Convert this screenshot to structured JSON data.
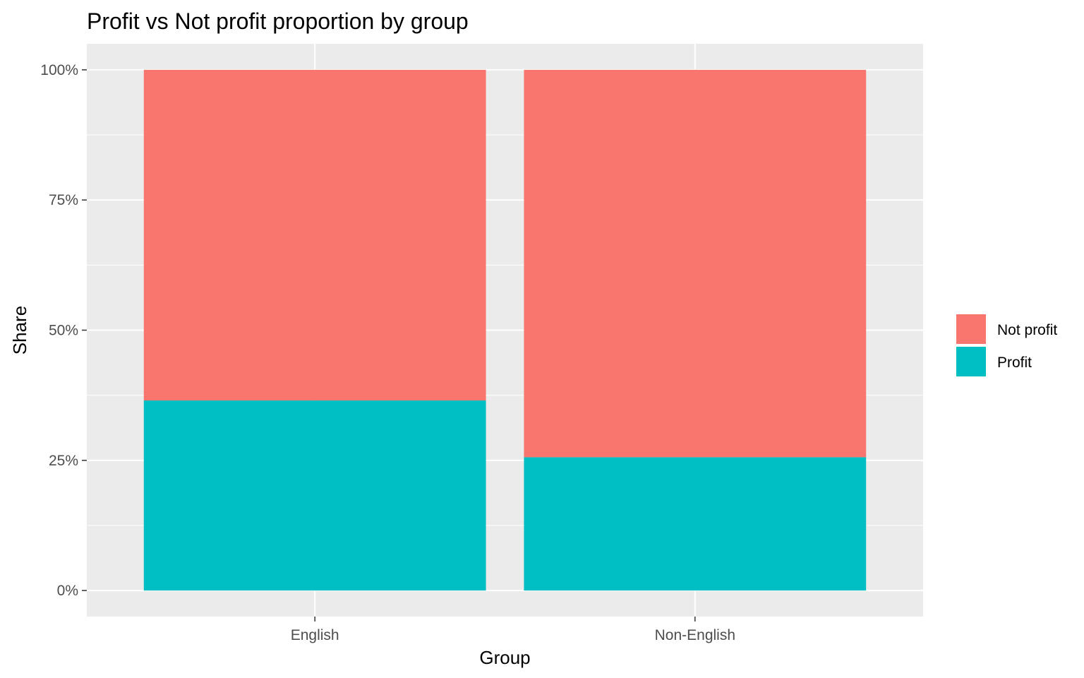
{
  "chart_data": {
    "type": "bar",
    "stacked": true,
    "title": "Profit vs Not profit proportion by group",
    "xlabel": "Group",
    "ylabel": "Share",
    "categories": [
      "English",
      "Non-English"
    ],
    "series": [
      {
        "name": "Profit",
        "color": "#00BFC4",
        "values": [
          0.365,
          0.256
        ]
      },
      {
        "name": "Not profit",
        "color": "#F8766D",
        "values": [
          0.635,
          0.744
        ]
      }
    ],
    "ylim": [
      -0.05,
      1.05
    ],
    "yticks": [
      0,
      0.25,
      0.5,
      0.75,
      1.0
    ],
    "ytick_labels": [
      "0%",
      "25%",
      "50%",
      "75%",
      "100%"
    ],
    "legend": {
      "position": "right",
      "entries": [
        {
          "label": "Not profit",
          "color": "#F8766D"
        },
        {
          "label": "Profit",
          "color": "#00BFC4"
        }
      ]
    },
    "panel_background": "#EBEBEB",
    "grid": true
  }
}
